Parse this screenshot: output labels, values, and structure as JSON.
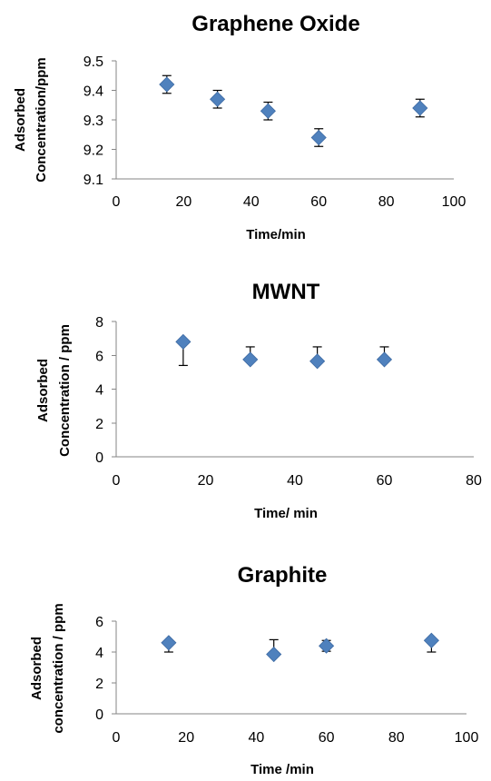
{
  "chart_data": [
    {
      "type": "scatter",
      "title": "Graphene Oxide",
      "xlabel": "Time/min",
      "ylabel": [
        "Adsorbed",
        "Concentration/ppm"
      ],
      "xlim": [
        0,
        100
      ],
      "ylim": [
        9.1,
        9.5
      ],
      "xticks": [
        0,
        20,
        40,
        60,
        80,
        100
      ],
      "yticks": [
        9.1,
        9.2,
        9.3,
        9.4,
        9.5
      ],
      "ytick_labels": [
        "9.1",
        "9.2",
        "9.3",
        "9.4",
        "9.5"
      ],
      "grid": false,
      "marker": "diamond",
      "color": "#4F81BD",
      "points": [
        {
          "x": 15,
          "y": 9.42,
          "err_low": 9.39,
          "err_high": 9.45
        },
        {
          "x": 30,
          "y": 9.37,
          "err_low": 9.34,
          "err_high": 9.4
        },
        {
          "x": 45,
          "y": 9.33,
          "err_low": 9.3,
          "err_high": 9.36
        },
        {
          "x": 60,
          "y": 9.24,
          "err_low": 9.21,
          "err_high": 9.27
        },
        {
          "x": 90,
          "y": 9.34,
          "err_low": 9.31,
          "err_high": 9.37
        }
      ]
    },
    {
      "type": "scatter",
      "title": "MWNT",
      "xlabel": "Time/ min",
      "ylabel": [
        "Adsorbed",
        "Concentration / ppm"
      ],
      "xlim": [
        0,
        80
      ],
      "ylim": [
        0,
        8
      ],
      "xticks": [
        0,
        20,
        40,
        60,
        80
      ],
      "yticks": [
        0,
        2,
        4,
        6,
        8
      ],
      "ytick_labels": [
        "0",
        "2",
        "4",
        "6",
        "8"
      ],
      "grid": false,
      "marker": "diamond",
      "color": "#4F81BD",
      "points": [
        {
          "x": 15,
          "y": 6.8,
          "err_low": 5.4,
          "err_high": 6.8
        },
        {
          "x": 30,
          "y": 5.75,
          "err_low": 5.75,
          "err_high": 6.5
        },
        {
          "x": 45,
          "y": 5.65,
          "err_low": 5.65,
          "err_high": 6.5
        },
        {
          "x": 60,
          "y": 5.75,
          "err_low": 5.75,
          "err_high": 6.5
        }
      ]
    },
    {
      "type": "scatter",
      "title": "Graphite",
      "xlabel": "Time /min",
      "ylabel": [
        "Adsorbed",
        "concentration / ppm"
      ],
      "xlim": [
        0,
        100
      ],
      "ylim": [
        0,
        6
      ],
      "xticks": [
        0,
        20,
        40,
        60,
        80,
        100
      ],
      "yticks": [
        0,
        2,
        4,
        6
      ],
      "ytick_labels": [
        "0",
        "2",
        "4",
        "6"
      ],
      "grid": false,
      "marker": "diamond",
      "color": "#4F81BD",
      "points": [
        {
          "x": 15,
          "y": 4.6,
          "err_low": 4.0,
          "err_high": 4.6
        },
        {
          "x": 45,
          "y": 3.85,
          "err_low": 3.85,
          "err_high": 4.8
        },
        {
          "x": 60,
          "y": 4.4,
          "err_low": 4.05,
          "err_high": 4.75
        },
        {
          "x": 90,
          "y": 4.75,
          "err_low": 4.0,
          "err_high": 4.75
        }
      ]
    }
  ]
}
